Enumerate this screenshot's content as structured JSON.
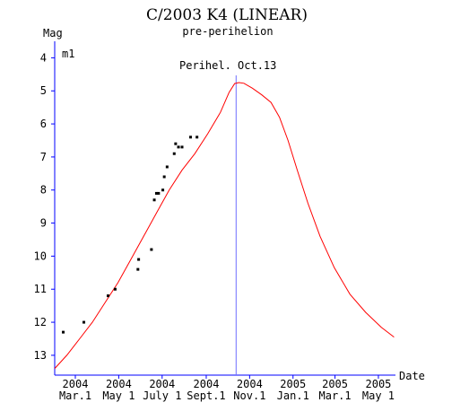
{
  "chart_data": {
    "type": "line",
    "title": "C/2003 K4 (LINEAR)",
    "subtitle": "pre-perihelion",
    "ylabel": "Mag",
    "xlabel": "Date",
    "series_label": "m1",
    "annotation": "Perihel. Oct.13",
    "y_inverted": true,
    "ylim": [
      13.6,
      3.5
    ],
    "xlim": [
      "2004-02-01",
      "2005-05-25"
    ],
    "y_ticks": [
      4,
      5,
      6,
      7,
      8,
      9,
      10,
      11,
      12,
      13
    ],
    "x_ticks": [
      {
        "date": "2004-03-01",
        "year": "2004",
        "label": "Mar.1"
      },
      {
        "date": "2004-05-01",
        "year": "2004",
        "label": "May 1"
      },
      {
        "date": "2004-07-01",
        "year": "2004",
        "label": "July 1"
      },
      {
        "date": "2004-09-01",
        "year": "2004",
        "label": "Sept.1"
      },
      {
        "date": "2004-11-01",
        "year": "2004",
        "label": "Nov.1"
      },
      {
        "date": "2005-01-01",
        "year": "2005",
        "label": "Jan.1"
      },
      {
        "date": "2005-03-01",
        "year": "2005",
        "label": "Mar.1"
      },
      {
        "date": "2005-05-01",
        "year": "2005",
        "label": "May 1"
      }
    ],
    "perihelion_date": "2004-10-13",
    "series": [
      {
        "type": "line",
        "color": "#ff0000",
        "points": [
          {
            "x": "2004-02-01",
            "y": 13.4
          },
          {
            "x": "2004-02-18",
            "y": 13.0
          },
          {
            "x": "2004-03-07",
            "y": 12.5
          },
          {
            "x": "2004-03-25",
            "y": 12.0
          },
          {
            "x": "2004-04-12",
            "y": 11.4
          },
          {
            "x": "2004-04-30",
            "y": 10.8
          },
          {
            "x": "2004-05-18",
            "y": 10.1
          },
          {
            "x": "2004-06-05",
            "y": 9.4
          },
          {
            "x": "2004-06-23",
            "y": 8.7
          },
          {
            "x": "2004-07-11",
            "y": 8.0
          },
          {
            "x": "2004-07-29",
            "y": 7.4
          },
          {
            "x": "2004-08-16",
            "y": 6.9
          },
          {
            "x": "2004-09-03",
            "y": 6.3
          },
          {
            "x": "2004-09-21",
            "y": 5.65
          },
          {
            "x": "2004-10-03",
            "y": 5.05
          },
          {
            "x": "2004-10-11",
            "y": 4.78
          },
          {
            "x": "2004-10-17",
            "y": 4.75
          },
          {
            "x": "2004-10-24",
            "y": 4.77
          },
          {
            "x": "2004-11-05",
            "y": 4.92
          },
          {
            "x": "2004-11-18",
            "y": 5.12
          },
          {
            "x": "2004-12-01",
            "y": 5.35
          },
          {
            "x": "2004-12-13",
            "y": 5.8
          },
          {
            "x": "2004-12-25",
            "y": 6.5
          },
          {
            "x": "2005-01-07",
            "y": 7.4
          },
          {
            "x": "2005-01-22",
            "y": 8.4
          },
          {
            "x": "2005-02-08",
            "y": 9.4
          },
          {
            "x": "2005-02-28",
            "y": 10.35
          },
          {
            "x": "2005-03-22",
            "y": 11.15
          },
          {
            "x": "2005-04-13",
            "y": 11.7
          },
          {
            "x": "2005-05-05",
            "y": 12.15
          },
          {
            "x": "2005-05-23",
            "y": 12.45
          }
        ]
      },
      {
        "type": "scatter",
        "color": "#000000",
        "points": [
          {
            "x": "2004-02-13",
            "y": 12.3
          },
          {
            "x": "2004-03-13",
            "y": 12.0
          },
          {
            "x": "2004-04-16",
            "y": 11.2
          },
          {
            "x": "2004-04-26",
            "y": 11.0
          },
          {
            "x": "2004-05-28",
            "y": 10.4
          },
          {
            "x": "2004-05-29",
            "y": 10.1
          },
          {
            "x": "2004-06-16",
            "y": 9.8
          },
          {
            "x": "2004-06-20",
            "y": 8.3
          },
          {
            "x": "2004-06-23",
            "y": 8.1
          },
          {
            "x": "2004-06-26",
            "y": 8.1
          },
          {
            "x": "2004-07-02",
            "y": 8.0
          },
          {
            "x": "2004-07-04",
            "y": 7.6
          },
          {
            "x": "2004-07-08",
            "y": 7.3
          },
          {
            "x": "2004-07-18",
            "y": 6.9
          },
          {
            "x": "2004-07-20",
            "y": 6.6
          },
          {
            "x": "2004-07-24",
            "y": 6.7
          },
          {
            "x": "2004-07-29",
            "y": 6.7
          },
          {
            "x": "2004-08-10",
            "y": 6.4
          },
          {
            "x": "2004-08-19",
            "y": 6.4
          }
        ]
      }
    ]
  }
}
